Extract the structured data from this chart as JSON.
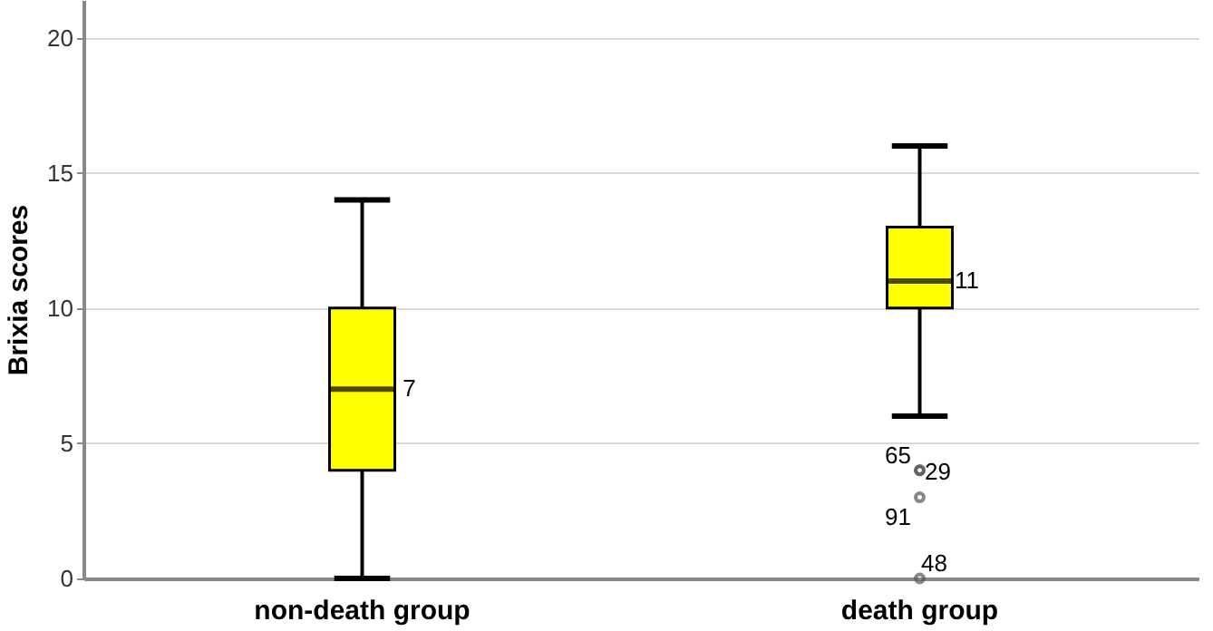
{
  "chart_data": {
    "type": "box",
    "ylabel": "Brixia scores",
    "categories": [
      "non-death group",
      "death group"
    ],
    "series": [
      {
        "color": "#ffff00",
        "boxes": [
          {
            "low": 0,
            "q1": 4,
            "median": 7,
            "q3": 10,
            "high": 14
          },
          {
            "low": 6,
            "q1": 10,
            "median": 11,
            "q3": 13,
            "high": 16
          }
        ]
      },
      {
        "type": "scatter",
        "x": [
          "death group",
          "death group",
          "death group",
          "death group"
        ],
        "values": [
          4,
          4,
          3,
          0
        ],
        "color": "#555555",
        "marker": "circle"
      }
    ],
    "ylim": [
      0,
      21.4
    ],
    "yticks": [
      0,
      5,
      10,
      15,
      20
    ],
    "grid": "y",
    "annotations": [
      {
        "text": "7",
        "x": "non-death group",
        "y": 7
      },
      {
        "text": "11",
        "x": "death group",
        "y": 11
      },
      {
        "text": "65",
        "x": "death group",
        "y": 4
      },
      {
        "text": "29",
        "x": "death group",
        "y": 4
      },
      {
        "text": "91",
        "x": "death group",
        "y": 3
      },
      {
        "text": "48",
        "x": "death group",
        "y": 0
      }
    ]
  }
}
